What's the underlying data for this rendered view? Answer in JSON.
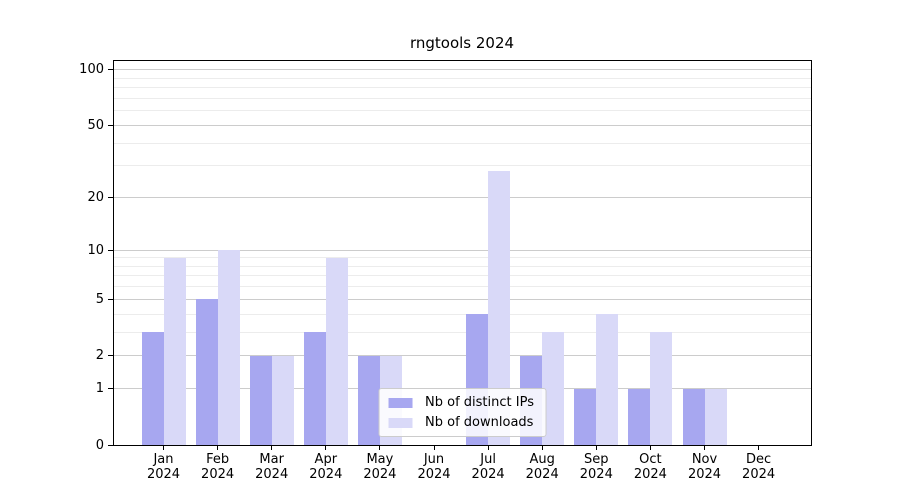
{
  "chart_data": {
    "type": "bar",
    "title": "rngtools 2024",
    "year": "2024",
    "categories": [
      "Jan",
      "Feb",
      "Mar",
      "Apr",
      "May",
      "Jun",
      "Jul",
      "Aug",
      "Sep",
      "Oct",
      "Nov",
      "Dec"
    ],
    "series": [
      {
        "name": "Nb of distinct IPs",
        "color": "#a7a7f0",
        "values": [
          3,
          5,
          2,
          3,
          2,
          0,
          4,
          2,
          1,
          1,
          1,
          0
        ]
      },
      {
        "name": "Nb of downloads",
        "color": "#d9d9f8",
        "values": [
          9,
          10,
          2,
          9,
          2,
          0,
          28,
          3,
          4,
          3,
          1,
          0
        ]
      }
    ],
    "xlabel": "",
    "ylabel": "",
    "yscale": "log1p",
    "ylim": [
      0,
      114
    ],
    "yticks": [
      0,
      1,
      2,
      5,
      10,
      20,
      50,
      100
    ],
    "y_minor_gridlines": [
      3,
      4,
      6,
      7,
      8,
      9,
      30,
      40,
      60,
      70,
      80,
      90
    ],
    "grid": true,
    "legend_position": "lower center"
  }
}
